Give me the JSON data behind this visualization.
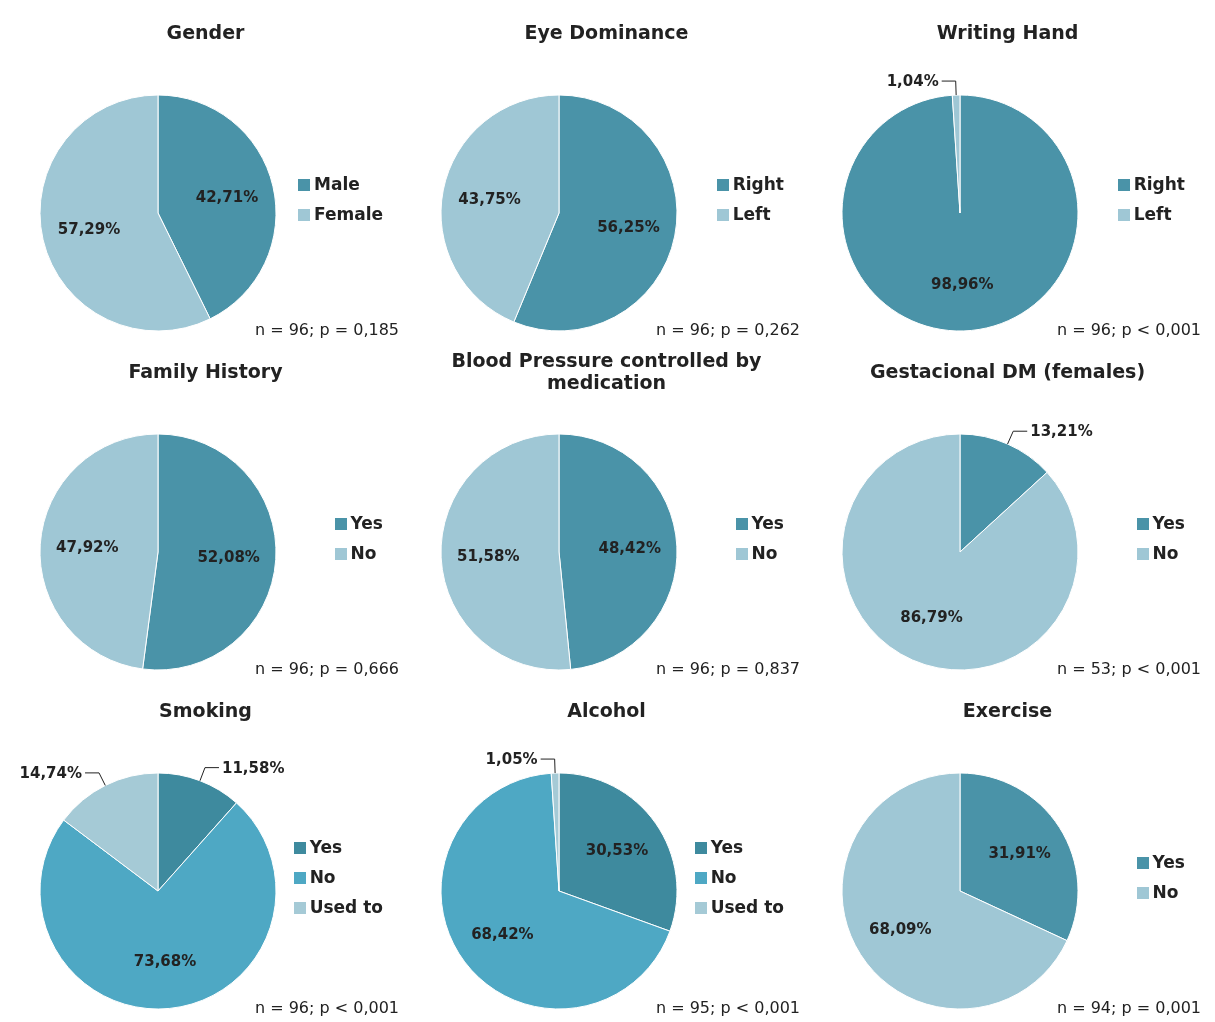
{
  "chart_data": [
    {
      "type": "pie",
      "title": "Gender",
      "categories": [
        "Male",
        "Female"
      ],
      "values": [
        42.71,
        57.29
      ],
      "value_labels": [
        "42,71%",
        "57,29%"
      ],
      "colors": [
        "#4a93a8",
        "#9fc7d5"
      ],
      "legend": "right",
      "annotations": [
        "n = 96; p = 0,185"
      ]
    },
    {
      "type": "pie",
      "title": "Eye Dominance",
      "categories": [
        "Right",
        "Left"
      ],
      "values": [
        56.25,
        43.75
      ],
      "value_labels": [
        "56,25%",
        "43,75%"
      ],
      "colors": [
        "#4a93a8",
        "#9fc7d5"
      ],
      "legend": "right",
      "annotations": [
        "n = 96; p = 0,262"
      ]
    },
    {
      "type": "pie",
      "title": "Writing Hand",
      "categories": [
        "Right",
        "Left"
      ],
      "values": [
        98.96,
        1.04
      ],
      "value_labels": [
        "98,96%",
        "1,04%"
      ],
      "colors": [
        "#4a93a8",
        "#9fc7d5"
      ],
      "legend": "right",
      "annotations": [
        "n = 96; p < 0,001"
      ]
    },
    {
      "type": "pie",
      "title": "Family History",
      "categories": [
        "Yes",
        "No"
      ],
      "values": [
        52.08,
        47.92
      ],
      "value_labels": [
        "52,08%",
        "47,92%"
      ],
      "colors": [
        "#4a93a8",
        "#9fc7d5"
      ],
      "legend": "right",
      "annotations": [
        "n = 96; p = 0,666"
      ]
    },
    {
      "type": "pie",
      "title": "Blood Pressure controlled by medication",
      "categories": [
        "Yes",
        "No"
      ],
      "values": [
        48.42,
        51.58
      ],
      "value_labels": [
        "48,42%",
        "51,58%"
      ],
      "colors": [
        "#4a93a8",
        "#9fc7d5"
      ],
      "legend": "right",
      "annotations": [
        "n = 96; p = 0,837"
      ]
    },
    {
      "type": "pie",
      "title": "Gestacional DM (females)",
      "categories": [
        "Yes",
        "No"
      ],
      "values": [
        13.21,
        86.79
      ],
      "value_labels": [
        "13,21%",
        "86,79%"
      ],
      "colors": [
        "#4a93a8",
        "#9fc7d5"
      ],
      "legend": "right",
      "annotations": [
        "n = 53; p < 0,001"
      ]
    },
    {
      "type": "pie",
      "title": "Smoking",
      "categories": [
        "Yes",
        "No",
        "Used to"
      ],
      "values": [
        11.58,
        73.68,
        14.74
      ],
      "value_labels": [
        "11,58%",
        "73,68%",
        "14,74%"
      ],
      "colors": [
        "#3e8a9e",
        "#4ea8c4",
        "#a5cad6"
      ],
      "legend": "right",
      "annotations": [
        "n = 96; p < 0,001"
      ]
    },
    {
      "type": "pie",
      "title": "Alcohol",
      "categories": [
        "Yes",
        "No",
        "Used to"
      ],
      "values": [
        30.53,
        68.42,
        1.05
      ],
      "value_labels": [
        "30,53%",
        "68,42%",
        "1,05%"
      ],
      "colors": [
        "#3e8a9e",
        "#4ea8c4",
        "#a5cad6"
      ],
      "legend": "right",
      "annotations": [
        "n = 95; p < 0,001"
      ]
    },
    {
      "type": "pie",
      "title": "Exercise",
      "categories": [
        "Yes",
        "No"
      ],
      "values": [
        31.91,
        68.09
      ],
      "value_labels": [
        "31,91%",
        "68,09%"
      ],
      "colors": [
        "#4a93a8",
        "#9fc7d5"
      ],
      "legend": "right",
      "annotations": [
        "n = 94; p = 0,001"
      ]
    }
  ]
}
